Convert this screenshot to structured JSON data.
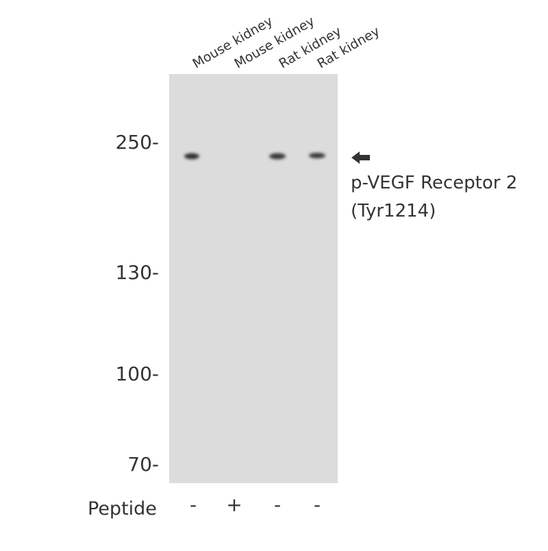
{
  "lanes": [
    {
      "label": "Mouse kidney",
      "peptide": "-"
    },
    {
      "label": "Mouse kidney",
      "peptide": "+"
    },
    {
      "label": "Rat kidney",
      "peptide": "-"
    },
    {
      "label": "Rat kidney",
      "peptide": "-"
    }
  ],
  "markers": [
    "250-",
    "130-",
    "100-",
    "70-"
  ],
  "peptide_label": "Peptide",
  "annotation": [
    "p-VEGF Receptor 2",
    "(Tyr1214)"
  ]
}
